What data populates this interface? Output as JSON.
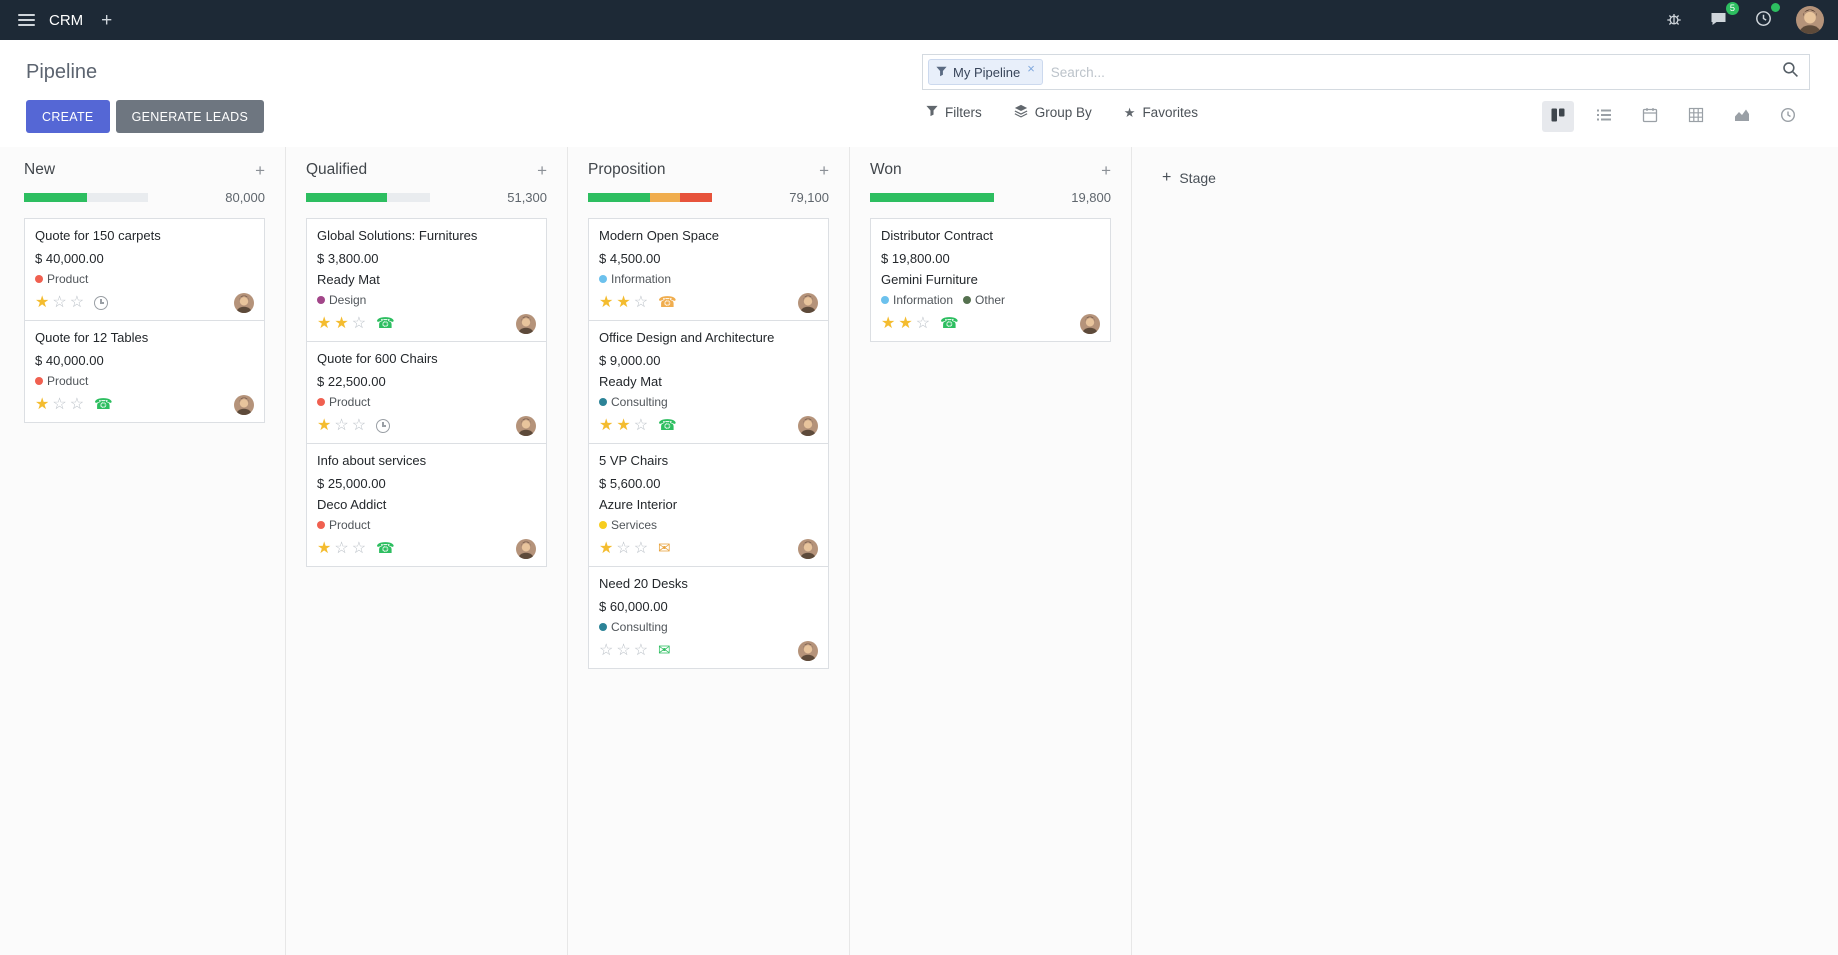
{
  "colors": {
    "topbar_bg": "#1d2936",
    "primary": "#5567d5",
    "success": "#2dbe60",
    "warning": "#f0ad4e",
    "danger": "#e7533b",
    "star": "#f4bc2f"
  },
  "topbar": {
    "app_name": "CRM",
    "messages_badge": "5"
  },
  "control_panel": {
    "title": "Pipeline",
    "search_facet": "My Pipeline",
    "search_placeholder": "Search...",
    "create_label": "CREATE",
    "generate_leads_label": "GENERATE LEADS",
    "filters_label": "Filters",
    "group_by_label": "Group By",
    "favorites_label": "Favorites",
    "view_switcher": {
      "views": [
        "kanban",
        "list",
        "calendar",
        "pivot",
        "graph",
        "activity"
      ],
      "active": "kanban"
    }
  },
  "board": {
    "add_stage_label": "Stage",
    "columns": [
      {
        "name": "New",
        "total": "80,000",
        "progress": [
          {
            "color": "#2dbe60",
            "pct": 51
          },
          {
            "color": "#e9ecef",
            "pct": 49
          }
        ],
        "cards": [
          {
            "title": "Quote for 150 carpets",
            "amount": "$ 40,000.00",
            "partner": "",
            "tags": [
              {
                "label": "Product",
                "color": "#f06050"
              }
            ],
            "stars": 1,
            "activity": "clock",
            "activity_color": "#9a9fa5"
          },
          {
            "title": "Quote for 12 Tables",
            "amount": "$ 40,000.00",
            "partner": "",
            "tags": [
              {
                "label": "Product",
                "color": "#f06050"
              }
            ],
            "stars": 1,
            "activity": "phone",
            "activity_color": "#2dbe60"
          }
        ]
      },
      {
        "name": "Qualified",
        "total": "51,300",
        "progress": [
          {
            "color": "#2dbe60",
            "pct": 65
          },
          {
            "color": "#e9ecef",
            "pct": 35
          }
        ],
        "cards": [
          {
            "title": "Global Solutions: Furnitures",
            "amount": "$ 3,800.00",
            "partner": "Ready Mat",
            "tags": [
              {
                "label": "Design",
                "color": "#a24689"
              }
            ],
            "stars": 2,
            "activity": "phone",
            "activity_color": "#2dbe60"
          },
          {
            "title": "Quote for 600 Chairs",
            "amount": "$ 22,500.00",
            "partner": "",
            "tags": [
              {
                "label": "Product",
                "color": "#f06050"
              }
            ],
            "stars": 1,
            "activity": "clock",
            "activity_color": "#9a9fa5"
          },
          {
            "title": "Info about services",
            "amount": "$ 25,000.00",
            "partner": "Deco Addict",
            "tags": [
              {
                "label": "Product",
                "color": "#f06050"
              }
            ],
            "stars": 1,
            "activity": "phone",
            "activity_color": "#2dbe60"
          }
        ]
      },
      {
        "name": "Proposition",
        "total": "79,100",
        "progress": [
          {
            "color": "#2dbe60",
            "pct": 50
          },
          {
            "color": "#f0ad4e",
            "pct": 24
          },
          {
            "color": "#e7533b",
            "pct": 26
          }
        ],
        "cards": [
          {
            "title": "Modern Open Space",
            "amount": "$ 4,500.00",
            "partner": "",
            "tags": [
              {
                "label": "Information",
                "color": "#6cc1ed"
              }
            ],
            "stars": 2,
            "activity": "phone",
            "activity_color": "#f0ad4e"
          },
          {
            "title": "Office Design and Architecture",
            "amount": "$ 9,000.00",
            "partner": "Ready Mat",
            "tags": [
              {
                "label": "Consulting",
                "color": "#2c8397"
              }
            ],
            "stars": 2,
            "activity": "phone",
            "activity_color": "#2dbe60"
          },
          {
            "title": "5 VP Chairs",
            "amount": "$ 5,600.00",
            "partner": "Azure Interior",
            "tags": [
              {
                "label": "Services",
                "color": "#f7cd1f"
              }
            ],
            "stars": 1,
            "activity": "mail",
            "activity_color": "#e8a33d"
          },
          {
            "title": "Need 20 Desks",
            "amount": "$ 60,000.00",
            "partner": "",
            "tags": [
              {
                "label": "Consulting",
                "color": "#2c8397"
              }
            ],
            "stars": 0,
            "activity": "mail",
            "activity_color": "#2dbe60"
          }
        ]
      },
      {
        "name": "Won",
        "total": "19,800",
        "progress": [
          {
            "color": "#2dbe60",
            "pct": 100
          }
        ],
        "cards": [
          {
            "title": "Distributor Contract",
            "amount": "$ 19,800.00",
            "partner": "Gemini Furniture",
            "tags": [
              {
                "label": "Information",
                "color": "#6cc1ed"
              },
              {
                "label": "Other",
                "color": "#55714f"
              }
            ],
            "stars": 2,
            "activity": "phone",
            "activity_color": "#2dbe60"
          }
        ]
      }
    ]
  }
}
